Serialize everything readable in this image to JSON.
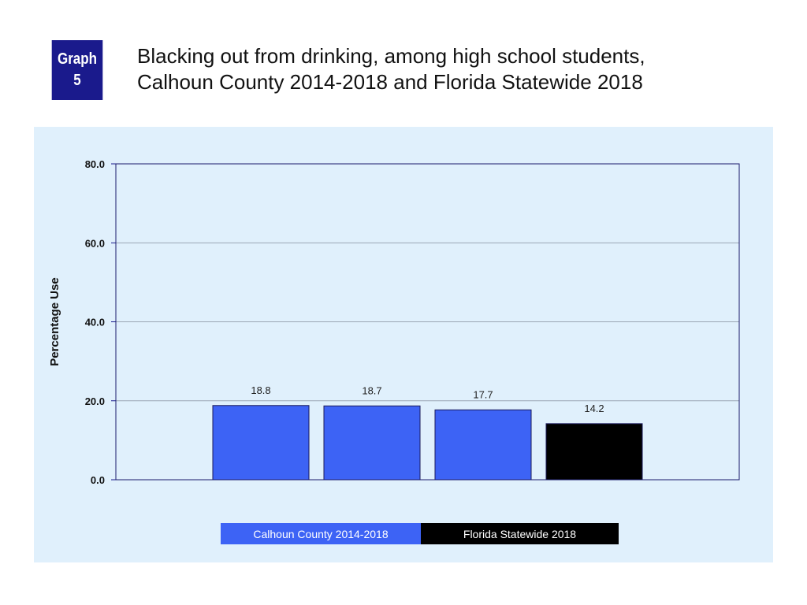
{
  "badge": {
    "line1": "Graph",
    "line2": "5"
  },
  "title": {
    "line1": "Blacking out from drinking, among high school students,",
    "line2": "Calhoun County 2014-2018 and Florida Statewide 2018"
  },
  "chart_data": {
    "type": "bar",
    "title": "Blacking out from drinking, among high school students, Calhoun County 2014-2018 and Florida Statewide 2018",
    "ylabel": "Percentage Use",
    "xlabel": "",
    "ylim": [
      0,
      80
    ],
    "yticks": [
      "0.0",
      "20.0",
      "40.0",
      "60.0",
      "80.0"
    ],
    "grid": true,
    "values": [
      18.8,
      18.7,
      17.7,
      14.2
    ],
    "value_labels": [
      "18.8",
      "18.7",
      "17.7",
      "14.2"
    ],
    "bar_colors": [
      "#3d63f5",
      "#3d63f5",
      "#3d63f5",
      "#000000"
    ],
    "legend": [
      {
        "label": "Calhoun County 2014-2018",
        "color": "#3d63f5"
      },
      {
        "label": "Florida Statewide 2018",
        "color": "#000000"
      }
    ],
    "legend_position": "bottom"
  }
}
